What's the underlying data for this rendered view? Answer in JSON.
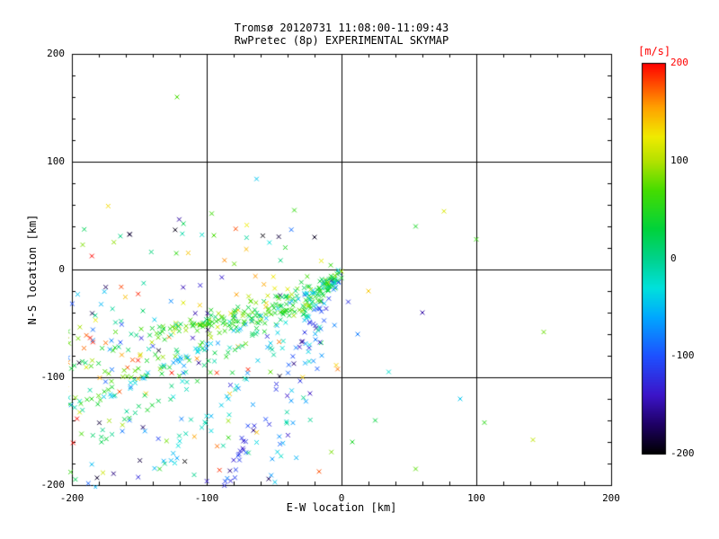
{
  "title": {
    "line1": "Tromsø 20120731 11:08:00-11:09:43",
    "line2": "RwPretec (8p) EXPERIMENTAL SKYMAP"
  },
  "axes": {
    "xlabel": "E-W location [km]",
    "ylabel": "N-S location [km]",
    "xlim": [
      -200,
      200
    ],
    "ylim": [
      -200,
      200
    ],
    "x_ticks": [
      -200,
      -100,
      0,
      100,
      200
    ],
    "y_ticks": [
      -200,
      -100,
      0,
      100,
      200
    ],
    "grid": true
  },
  "colorbar": {
    "label": "[m/s]",
    "label_color": "#ff0000",
    "min": -200,
    "max": 200,
    "ticks": [
      200,
      100,
      0,
      -100,
      -200
    ]
  },
  "chart_data": {
    "type": "scatter",
    "marker": "x",
    "title": "Tromsø 20120731 11:08:00-11:09:43 / RwPretec (8p) EXPERIMENTAL SKYMAP",
    "xlabel": "E-W location [km]",
    "ylabel": "N-S location [km]",
    "xlim": [
      -200,
      200
    ],
    "ylim": [
      -200,
      200
    ],
    "color_value_label": "[m/s]",
    "color_range": [
      -200,
      200
    ],
    "legend": "none",
    "grid": true,
    "seed": 42,
    "colormap_stops": [
      [
        -200,
        "#000000"
      ],
      [
        -170,
        "#1e0064"
      ],
      [
        -140,
        "#3c14c8"
      ],
      [
        -100,
        "#1e50ff"
      ],
      [
        -60,
        "#00a8ff"
      ],
      [
        -30,
        "#00e1dc"
      ],
      [
        0,
        "#00d28c"
      ],
      [
        30,
        "#00d23c"
      ],
      [
        70,
        "#46dc00"
      ],
      [
        100,
        "#b4e100"
      ],
      [
        125,
        "#f0eb00"
      ],
      [
        155,
        "#ffa000"
      ],
      [
        180,
        "#ff4600"
      ],
      [
        200,
        "#ff0000"
      ]
    ],
    "streaks": [
      {
        "from": [
          -2,
          -4
        ],
        "to": [
          -200,
          -92
        ],
        "n": 55,
        "jitter": 7,
        "v": 70,
        "spread": 70
      },
      {
        "from": [
          -2,
          -6
        ],
        "to": [
          -200,
          -128
        ],
        "n": 95,
        "jitter": 9,
        "v": 45,
        "spread": 55
      },
      {
        "from": [
          -5,
          -10
        ],
        "to": [
          -175,
          -118
        ],
        "n": 45,
        "jitter": 3,
        "v": -45,
        "spread": 25
      },
      {
        "from": [
          -2,
          -8
        ],
        "to": [
          -185,
          -158
        ],
        "n": 55,
        "jitter": 8,
        "v": 15,
        "spread": 55
      },
      {
        "from": [
          -2,
          -6
        ],
        "to": [
          -145,
          -200
        ],
        "n": 50,
        "jitter": 7,
        "v": -35,
        "spread": 45
      },
      {
        "from": [
          -1,
          -4
        ],
        "to": [
          -88,
          -200
        ],
        "n": 48,
        "jitter": 5,
        "v": -120,
        "spread": 45
      },
      {
        "from": [
          -2,
          -6
        ],
        "to": [
          -55,
          -195
        ],
        "n": 28,
        "jitter": 7,
        "v": -60,
        "spread": 70
      },
      {
        "from": [
          0,
          -2
        ],
        "to": [
          -30,
          -40
        ],
        "n": 55,
        "jitter": 6,
        "v": 30,
        "spread": 80
      },
      {
        "from": [
          -35,
          -35
        ],
        "to": [
          -150,
          -60
        ],
        "n": 70,
        "jitter": 6,
        "v": 55,
        "spread": 45
      }
    ],
    "random_clusters": [
      {
        "x": [
          -205,
          -2
        ],
        "y": [
          -205,
          -5
        ],
        "n": 140,
        "v": [
          -200,
          200
        ]
      },
      {
        "x": [
          -200,
          -30
        ],
        "y": [
          5,
          60
        ],
        "n": 30,
        "v": [
          -200,
          200
        ]
      },
      {
        "x": [
          -205,
          -150
        ],
        "y": [
          -150,
          -20
        ],
        "n": 40,
        "v": [
          -100,
          200
        ]
      }
    ],
    "extra_points": [
      [
        -122,
        160,
        70
      ],
      [
        -63,
        84,
        -45
      ],
      [
        55,
        40,
        45
      ],
      [
        76,
        54,
        115
      ],
      [
        100,
        28,
        60
      ],
      [
        142,
        -158,
        105
      ],
      [
        106,
        -142,
        55
      ],
      [
        88,
        -120,
        -45
      ],
      [
        35,
        -95,
        -25
      ],
      [
        150,
        -58,
        80
      ],
      [
        60,
        -40,
        -150
      ],
      [
        20,
        -20,
        140
      ],
      [
        12,
        -60,
        -80
      ],
      [
        25,
        -140,
        30
      ],
      [
        -20,
        30,
        -190
      ],
      [
        -35,
        55,
        60
      ],
      [
        8,
        -160,
        45
      ],
      [
        -15,
        8,
        120
      ],
      [
        -8,
        4,
        60
      ],
      [
        5,
        -30,
        -120
      ],
      [
        55,
        -185,
        75
      ]
    ]
  }
}
